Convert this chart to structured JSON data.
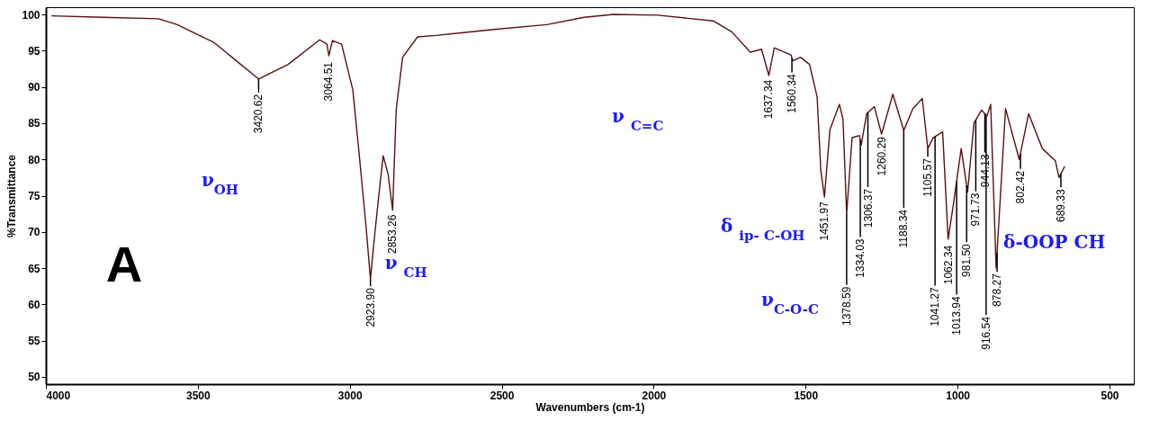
{
  "chart_data": {
    "type": "line",
    "xlabel": "Wavenumbers (cm-1)",
    "ylabel": "%Transmittance",
    "xlim": [
      4000,
      420
    ],
    "ylim": [
      49,
      101
    ],
    "xticks": [
      4000,
      3500,
      3000,
      2500,
      2000,
      1500,
      1000,
      500
    ],
    "yticks": [
      50,
      55,
      60,
      65,
      70,
      75,
      80,
      85,
      90,
      95,
      100
    ],
    "grid": false,
    "marker": "none",
    "line_style": "solid",
    "x": [
      3980,
      3811,
      3629,
      3568,
      3446,
      3373,
      3300,
      3203,
      3099,
      3075,
      3069,
      3057,
      3027,
      2990,
      2972,
      2947,
      2932,
      2917,
      2905,
      2890,
      2874,
      2859,
      2847,
      2826,
      2777,
      2716,
      2534,
      2351,
      2229,
      2132,
      1986,
      1803,
      1743,
      1682,
      1645,
      1621,
      1603,
      1548,
      1542,
      1517,
      1487,
      1462,
      1450,
      1438,
      1420,
      1389,
      1377,
      1365,
      1347,
      1323,
      1317,
      1299,
      1274,
      1250,
      1213,
      1177,
      1147,
      1116,
      1098,
      1080,
      1049,
      1031,
      1013,
      988,
      967,
      946,
      921,
      903,
      891,
      873,
      842,
      797,
      766,
      721,
      678,
      666,
      648
    ],
    "series": [
      {
        "color": "#5a1010",
        "values": [
          99.8,
          99.6,
          99.4,
          98.6,
          96.1,
          93.6,
          91.1,
          93.1,
          96.5,
          95.9,
          94.3,
          96.4,
          95.9,
          89.6,
          82.0,
          71.0,
          63.5,
          70.0,
          74.8,
          80.5,
          78.0,
          73.0,
          87.0,
          94.1,
          96.9,
          97.1,
          97.9,
          98.6,
          99.6,
          100.0,
          99.9,
          99.1,
          97.6,
          94.8,
          95.2,
          91.6,
          95.4,
          94.4,
          93.6,
          94.1,
          93.1,
          88.6,
          78.5,
          74.8,
          84.1,
          87.6,
          85.6,
          72.5,
          83.0,
          83.3,
          82.0,
          86.3,
          87.3,
          83.5,
          89.0,
          84.0,
          87.0,
          88.4,
          81.5,
          83.0,
          83.8,
          69.0,
          74.0,
          81.5,
          75.5,
          85.0,
          86.8,
          86.0,
          87.6,
          65.0,
          87.0,
          80.0,
          86.3,
          81.5,
          79.8,
          77.5,
          79.0
        ]
      }
    ],
    "annotations": [
      "A",
      "ν$_{OH}$",
      "ν $_{CH}$",
      "ν $_{C=C}$",
      "δ $_{ip- C-OH}$",
      "ν$_{C-O-C}$",
      "δ-OOP CH",
      {
        "text": "3420.62",
        "x": 3300,
        "y": 91.1
      },
      {
        "text": "3064.51",
        "x": 3069,
        "y": 94.3
      },
      {
        "text": "2923.90",
        "x": 2932,
        "y": 63.5
      },
      {
        "text": "2853.26",
        "x": 2859,
        "y": 73.0
      },
      {
        "text": "1637.34",
        "x": 1621,
        "y": 91.6
      },
      {
        "text": "1560.34",
        "x": 1545,
        "y": 94.0
      },
      {
        "text": "1451.97",
        "x": 1438,
        "y": 74.8
      },
      {
        "text": "1378.59",
        "x": 1365,
        "y": 72.5
      },
      {
        "text": "1334.03",
        "x": 1320,
        "y": 82.7
      },
      {
        "text": "1306.37",
        "x": 1295,
        "y": 86.5
      },
      {
        "text": "1260.29",
        "x": 1250,
        "y": 83.5
      },
      {
        "text": "1188.34",
        "x": 1177,
        "y": 84.0
      },
      {
        "text": "1105.57",
        "x": 1098,
        "y": 81.5
      },
      {
        "text": "1041.27",
        "x": 1074,
        "y": 83.2
      },
      {
        "text": "1062.34",
        "x": 1031,
        "y": 69.0
      },
      {
        "text": "1013.94",
        "x": 1003,
        "y": 77.0
      },
      {
        "text": "981.50",
        "x": 970,
        "y": 76.4
      },
      {
        "text": "971.73",
        "x": 940,
        "y": 85.4
      },
      {
        "text": "944.13",
        "x": 910,
        "y": 86.3
      },
      {
        "text": "916.54",
        "x": 906,
        "y": 86.1
      },
      {
        "text": "878.27",
        "x": 870,
        "y": 67.1
      },
      {
        "text": "802.42",
        "x": 793,
        "y": 80.8
      },
      {
        "text": "689.33",
        "x": 660,
        "y": 78.0
      }
    ]
  }
}
